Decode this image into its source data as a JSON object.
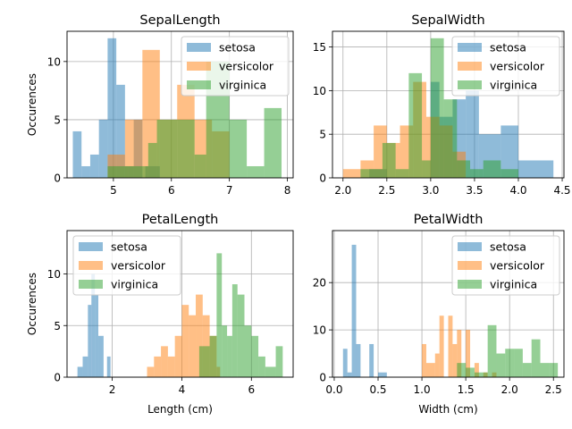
{
  "chart_data": [
    {
      "type": "bar",
      "title": "SepalLength",
      "xlabel": "",
      "ylabel": "Occurences",
      "xlim": [
        4.2,
        8.1
      ],
      "ylim": [
        0,
        12.6
      ],
      "xticks": [
        5,
        6,
        7,
        8
      ],
      "xtick_labels": [
        "5",
        "6",
        "7",
        "8"
      ],
      "yticks": [
        0,
        5,
        10
      ],
      "ytick_labels": [
        "0",
        "5",
        "10"
      ],
      "grid": true,
      "legend_position": "top-right",
      "series": [
        {
          "name": "setosa",
          "color": "#1f77b4",
          "bins": [
            [
              4.3,
              4.45,
              4
            ],
            [
              4.45,
              4.6,
              1
            ],
            [
              4.6,
              4.75,
              2
            ],
            [
              4.75,
              4.9,
              5
            ],
            [
              4.9,
              5.05,
              12
            ],
            [
              5.05,
              5.2,
              8
            ],
            [
              5.2,
              5.35,
              1
            ],
            [
              5.35,
              5.5,
              5
            ],
            [
              5.55,
              5.8,
              1
            ]
          ]
        },
        {
          "name": "versicolor",
          "color": "#ff7f0e",
          "bins": [
            [
              4.9,
              5.2,
              2
            ],
            [
              5.2,
              5.5,
              5
            ],
            [
              5.5,
              5.8,
              11
            ],
            [
              5.8,
              6.1,
              5
            ],
            [
              6.1,
              6.4,
              8
            ],
            [
              6.4,
              6.7,
              5
            ],
            [
              6.7,
              7.0,
              4
            ]
          ]
        },
        {
          "name": "virginica",
          "color": "#2ca02c",
          "bins": [
            [
              4.9,
              5.25,
              1
            ],
            [
              5.25,
              5.6,
              1
            ],
            [
              5.6,
              5.75,
              3
            ],
            [
              5.75,
              6.1,
              5
            ],
            [
              6.1,
              6.4,
              5
            ],
            [
              6.4,
              6.6,
              2
            ],
            [
              6.6,
              7.0,
              10
            ],
            [
              7.0,
              7.3,
              5
            ],
            [
              7.3,
              7.6,
              1
            ],
            [
              7.6,
              7.9,
              6
            ]
          ]
        }
      ]
    },
    {
      "type": "bar",
      "title": "SepalWidth",
      "xlabel": "",
      "ylabel": "",
      "xlim": [
        1.88,
        4.52
      ],
      "ylim": [
        0,
        16.8
      ],
      "xticks": [
        2.0,
        2.5,
        3.0,
        3.5,
        4.0,
        4.5
      ],
      "xtick_labels": [
        "2.0",
        "2.5",
        "3.0",
        "3.5",
        "4.0",
        "4.5"
      ],
      "yticks": [
        0,
        5,
        10,
        15
      ],
      "ytick_labels": [
        "0",
        "5",
        "10",
        "15"
      ],
      "grid": true,
      "legend_position": "top-right",
      "series": [
        {
          "name": "setosa",
          "color": "#1f77b4",
          "bins": [
            [
              2.3,
              2.5,
              1
            ],
            [
              3.0,
              3.1,
              11
            ],
            [
              3.1,
              3.25,
              7
            ],
            [
              3.25,
              3.4,
              9
            ],
            [
              3.4,
              3.55,
              10
            ],
            [
              3.55,
              3.8,
              5
            ],
            [
              3.8,
              4.0,
              6
            ],
            [
              4.0,
              4.4,
              2
            ]
          ]
        },
        {
          "name": "versicolor",
          "color": "#ff7f0e",
          "bins": [
            [
              2.0,
              2.2,
              1
            ],
            [
              2.2,
              2.35,
              2
            ],
            [
              2.35,
              2.5,
              6
            ],
            [
              2.5,
              2.65,
              4
            ],
            [
              2.65,
              2.8,
              6
            ],
            [
              2.8,
              2.95,
              11
            ],
            [
              2.95,
              3.1,
              7
            ],
            [
              3.1,
              3.25,
              6
            ],
            [
              3.25,
              3.4,
              3
            ]
          ]
        },
        {
          "name": "virginica",
          "color": "#2ca02c",
          "bins": [
            [
              2.2,
              2.45,
              1
            ],
            [
              2.45,
              2.6,
              4
            ],
            [
              2.6,
              2.75,
              1
            ],
            [
              2.75,
              2.9,
              12
            ],
            [
              2.9,
              3.0,
              2
            ],
            [
              3.0,
              3.15,
              16
            ],
            [
              3.15,
              3.3,
              9
            ],
            [
              3.3,
              3.45,
              2
            ],
            [
              3.45,
              3.6,
              1
            ],
            [
              3.6,
              3.8,
              2
            ],
            [
              3.8,
              4.0,
              1
            ]
          ]
        }
      ]
    },
    {
      "type": "bar",
      "title": "PetalLength",
      "xlabel": "Length (cm)",
      "ylabel": "Occurences",
      "xlim": [
        0.7,
        7.2
      ],
      "ylim": [
        0,
        14.2
      ],
      "xticks": [
        2,
        4,
        6
      ],
      "xtick_labels": [
        "2",
        "4",
        "6"
      ],
      "yticks": [
        0,
        5,
        10
      ],
      "ytick_labels": [
        "0",
        "5",
        "10"
      ],
      "grid": true,
      "legend_position": "top-left",
      "series": [
        {
          "name": "setosa",
          "color": "#1f77b4",
          "bins": [
            [
              1.0,
              1.15,
              1
            ],
            [
              1.15,
              1.3,
              2
            ],
            [
              1.3,
              1.4,
              7
            ],
            [
              1.4,
              1.5,
              10
            ],
            [
              1.5,
              1.6,
              8
            ],
            [
              1.6,
              1.75,
              4
            ],
            [
              1.85,
              1.95,
              2
            ]
          ]
        },
        {
          "name": "versicolor",
          "color": "#ff7f0e",
          "bins": [
            [
              3.0,
              3.2,
              1
            ],
            [
              3.2,
              3.4,
              2
            ],
            [
              3.4,
              3.6,
              3
            ],
            [
              3.6,
              3.8,
              2
            ],
            [
              3.8,
              4.0,
              4
            ],
            [
              4.0,
              4.2,
              7
            ],
            [
              4.2,
              4.4,
              6
            ],
            [
              4.4,
              4.6,
              8
            ],
            [
              4.6,
              4.8,
              6
            ],
            [
              4.8,
              5.0,
              4
            ],
            [
              5.0,
              5.1,
              1
            ]
          ]
        },
        {
          "name": "virginica",
          "color": "#2ca02c",
          "bins": [
            [
              4.5,
              4.8,
              3
            ],
            [
              4.8,
              5.0,
              4
            ],
            [
              5.0,
              5.15,
              12
            ],
            [
              5.15,
              5.3,
              5
            ],
            [
              5.3,
              5.45,
              4
            ],
            [
              5.45,
              5.6,
              9
            ],
            [
              5.6,
              5.8,
              8
            ],
            [
              5.8,
              6.0,
              5
            ],
            [
              6.0,
              6.2,
              4
            ],
            [
              6.2,
              6.4,
              2
            ],
            [
              6.4,
              6.7,
              1
            ],
            [
              6.7,
              6.9,
              3
            ]
          ]
        }
      ]
    },
    {
      "type": "bar",
      "title": "PetalWidth",
      "xlabel": "Width (cm)",
      "ylabel": "",
      "xlim": [
        -0.02,
        2.62
      ],
      "ylim": [
        0,
        31
      ],
      "xticks": [
        0.0,
        0.5,
        1.0,
        1.5,
        2.0,
        2.5
      ],
      "xtick_labels": [
        "0.0",
        "0.5",
        "1.0",
        "1.5",
        "2.0",
        "2.5"
      ],
      "yticks": [
        0,
        10,
        20
      ],
      "ytick_labels": [
        "0",
        "10",
        "20"
      ],
      "grid": true,
      "legend_position": "top-right",
      "series": [
        {
          "name": "setosa",
          "color": "#1f77b4",
          "bins": [
            [
              0.1,
              0.15,
              6
            ],
            [
              0.15,
              0.2,
              1
            ],
            [
              0.2,
              0.25,
              28
            ],
            [
              0.25,
              0.3,
              7
            ],
            [
              0.4,
              0.45,
              7
            ],
            [
              0.5,
              0.6,
              1
            ]
          ]
        },
        {
          "name": "versicolor",
          "color": "#ff7f0e",
          "bins": [
            [
              1.0,
              1.05,
              7
            ],
            [
              1.05,
              1.15,
              3
            ],
            [
              1.15,
              1.2,
              5
            ],
            [
              1.2,
              1.25,
              13
            ],
            [
              1.3,
              1.35,
              13
            ],
            [
              1.35,
              1.4,
              7
            ],
            [
              1.4,
              1.45,
              10
            ],
            [
              1.5,
              1.55,
              10
            ],
            [
              1.6,
              1.65,
              3
            ],
            [
              1.7,
              1.75,
              1
            ],
            [
              1.8,
              1.85,
              1
            ]
          ]
        },
        {
          "name": "virginica",
          "color": "#2ca02c",
          "bins": [
            [
              1.4,
              1.5,
              3
            ],
            [
              1.5,
              1.6,
              2
            ],
            [
              1.6,
              1.75,
              1
            ],
            [
              1.75,
              1.85,
              11
            ],
            [
              1.85,
              1.95,
              5
            ],
            [
              1.95,
              2.05,
              6
            ],
            [
              2.05,
              2.15,
              6
            ],
            [
              2.15,
              2.25,
              3
            ],
            [
              2.25,
              2.35,
              8
            ],
            [
              2.35,
              2.45,
              3
            ],
            [
              2.45,
              2.55,
              3
            ]
          ]
        }
      ]
    }
  ]
}
